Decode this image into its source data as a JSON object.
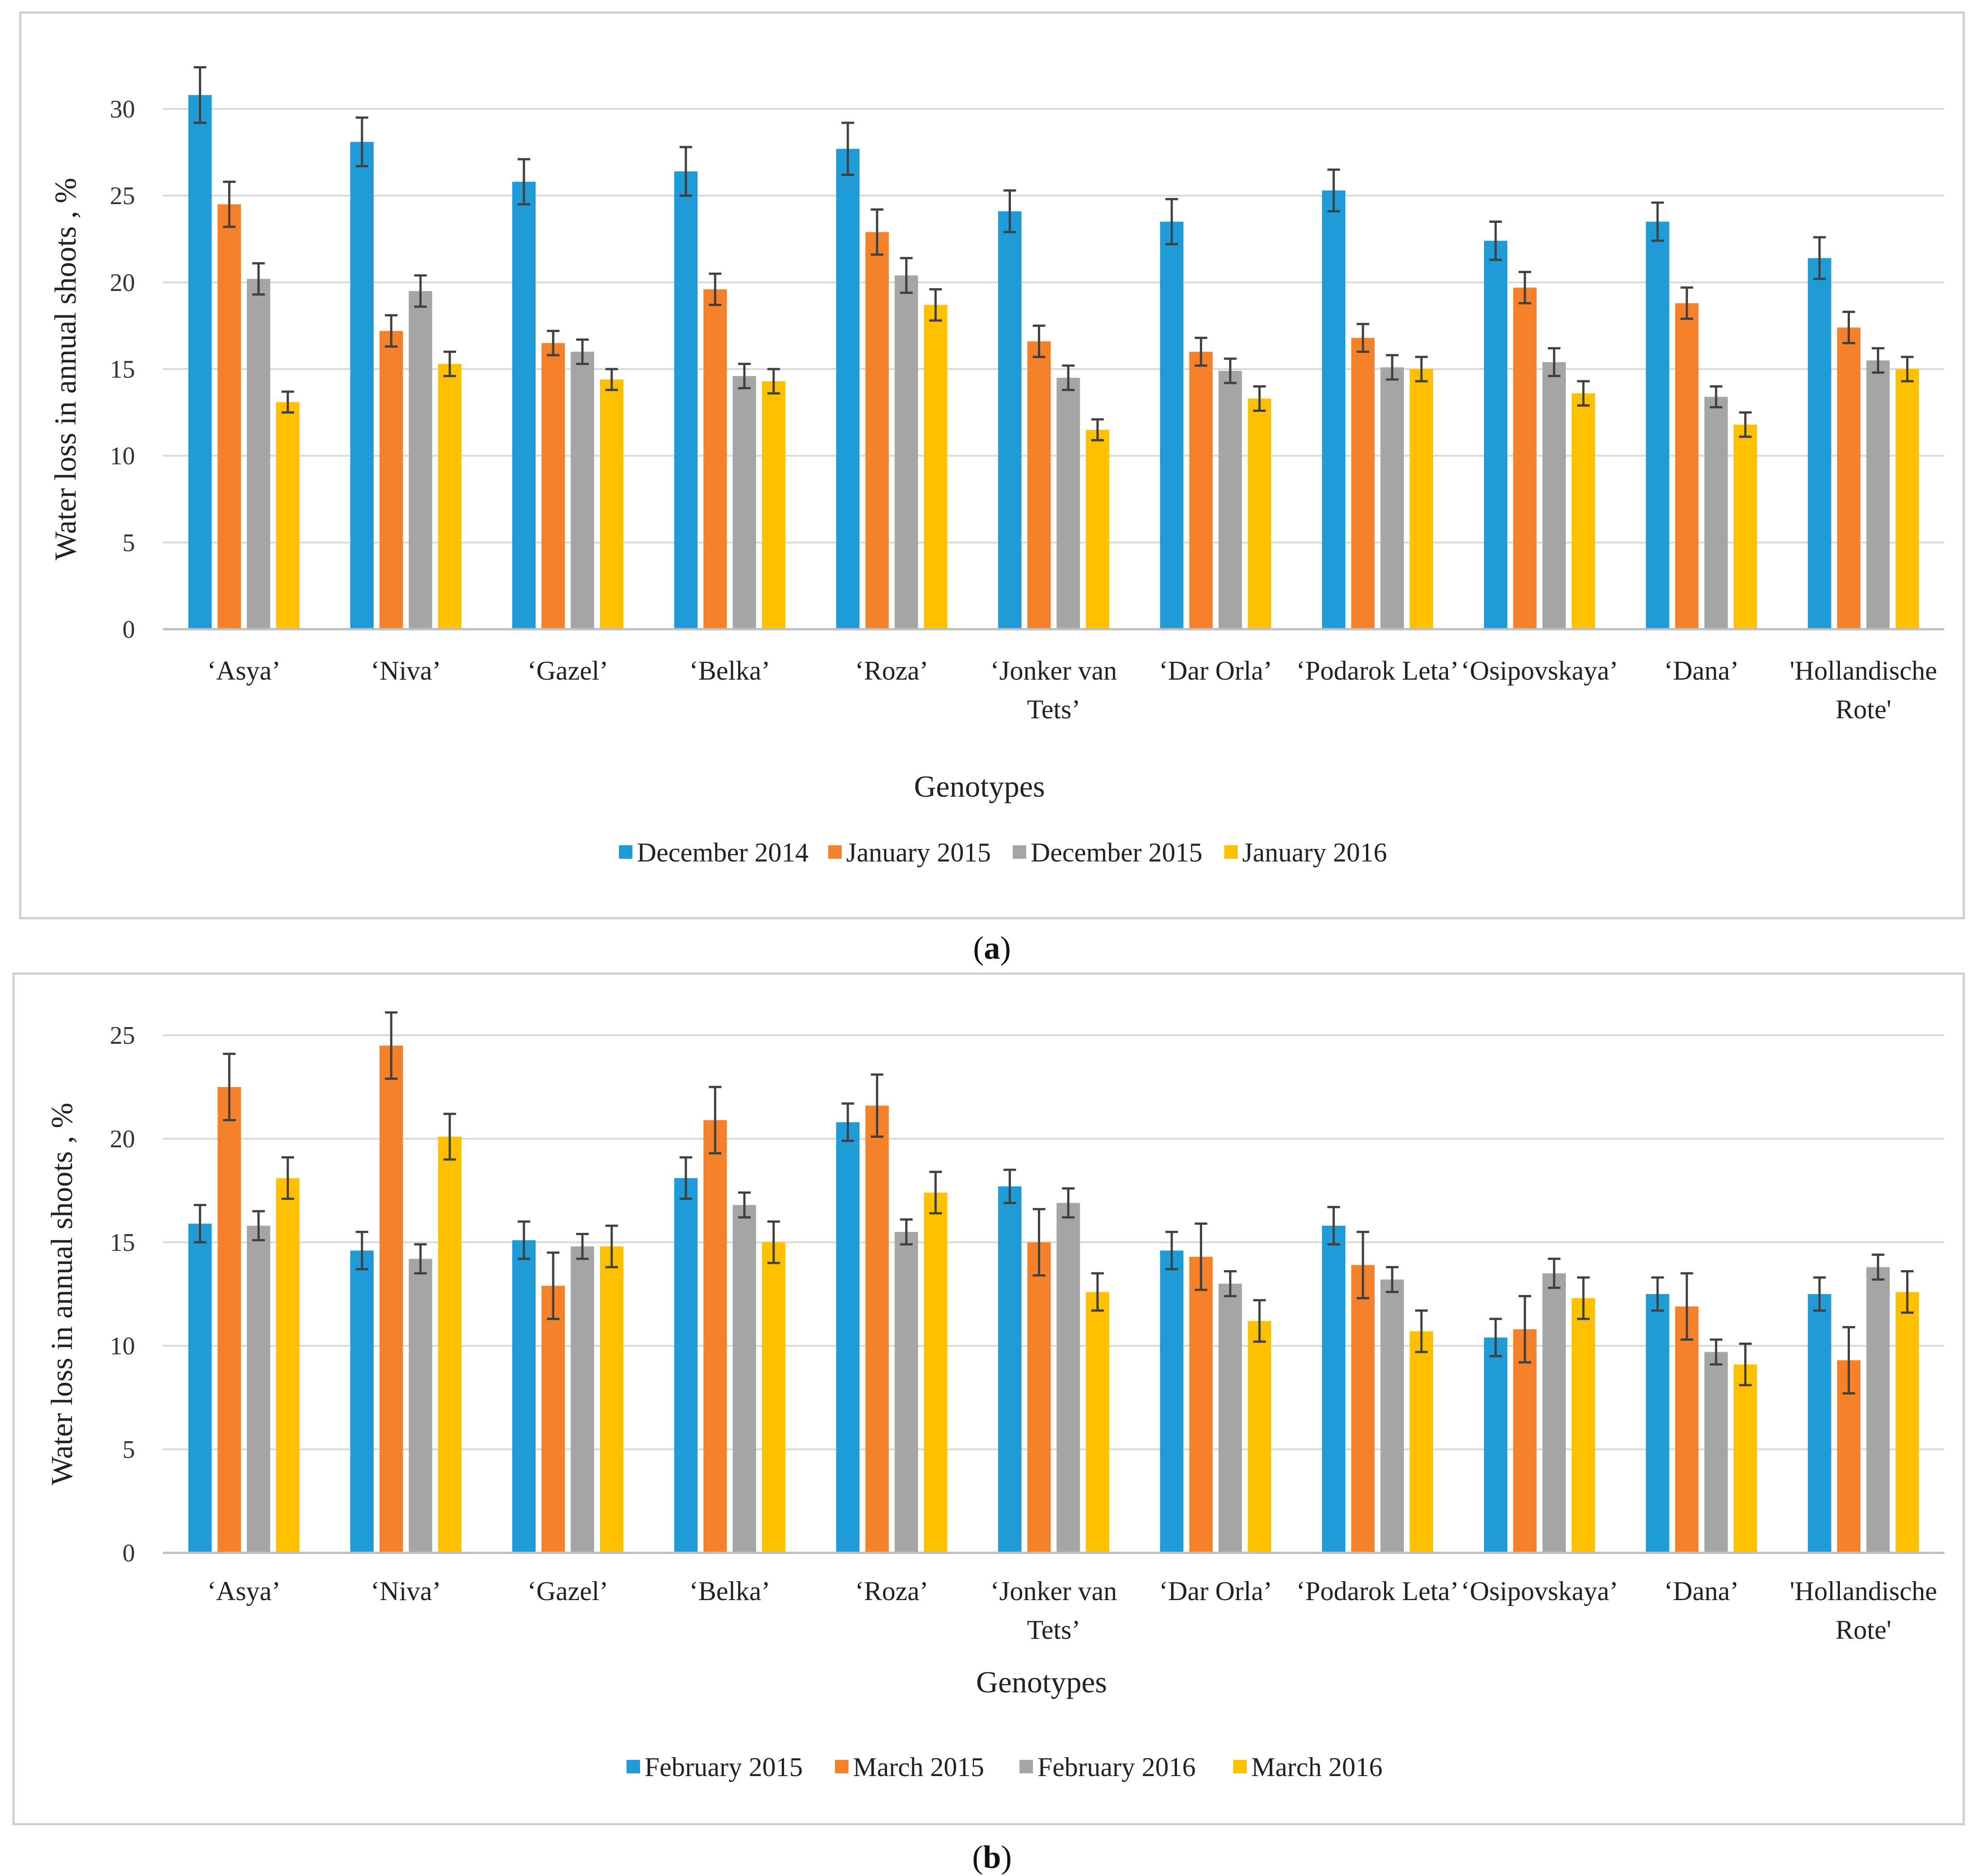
{
  "chart_data": [
    {
      "type": "bar",
      "panel_label": "a",
      "ylabel": "Water loss in annual shoots , %",
      "xlabel": "Genotypes",
      "ylim": [
        0,
        30
      ],
      "yticks": [
        0,
        5,
        10,
        15,
        20,
        25,
        30
      ],
      "categories": [
        [
          "‘Asya’"
        ],
        [
          "‘Niva’"
        ],
        [
          "‘Gazel’"
        ],
        [
          "‘Belka’"
        ],
        [
          "‘Roza’"
        ],
        [
          "‘Jonker van",
          "Tets’"
        ],
        [
          "‘Dar Orla’"
        ],
        [
          "‘Podarok Leta’"
        ],
        [
          "‘Osipovskaya’"
        ],
        [
          "‘Dana’"
        ],
        [
          "'Hollandische",
          "Rote'"
        ]
      ],
      "series": [
        {
          "name": "December 2014",
          "color": "#1f9cd8",
          "values": [
            30.8,
            28.1,
            25.8,
            26.4,
            27.7,
            24.1,
            23.5,
            25.3,
            22.4,
            23.5,
            21.4
          ],
          "errors": [
            1.6,
            1.4,
            1.3,
            1.4,
            1.5,
            1.2,
            1.3,
            1.2,
            1.1,
            1.1,
            1.2
          ]
        },
        {
          "name": "January 2015",
          "color": "#f5812a",
          "values": [
            24.5,
            17.2,
            16.5,
            19.6,
            22.9,
            16.6,
            16.0,
            16.8,
            19.7,
            18.8,
            17.4
          ],
          "errors": [
            1.3,
            0.9,
            0.7,
            0.9,
            1.3,
            0.9,
            0.8,
            0.8,
            0.9,
            0.9,
            0.9
          ]
        },
        {
          "name": "December 2015",
          "color": "#a5a5a5",
          "values": [
            20.2,
            19.5,
            16.0,
            14.6,
            20.4,
            14.5,
            14.9,
            15.1,
            15.4,
            13.4,
            15.5
          ],
          "errors": [
            0.9,
            0.9,
            0.7,
            0.7,
            1.0,
            0.7,
            0.7,
            0.7,
            0.8,
            0.6,
            0.7
          ]
        },
        {
          "name": "January 2016",
          "color": "#ffc000",
          "values": [
            13.1,
            15.3,
            14.4,
            14.3,
            18.7,
            11.5,
            13.3,
            15.0,
            13.6,
            11.8,
            15.0
          ],
          "errors": [
            0.6,
            0.7,
            0.6,
            0.7,
            0.9,
            0.6,
            0.7,
            0.7,
            0.7,
            0.7,
            0.7
          ]
        }
      ]
    },
    {
      "type": "bar",
      "panel_label": "b",
      "ylabel": "Water loss in annual shoots , %",
      "xlabel": "Genotypes",
      "ylim": [
        0,
        25
      ],
      "yticks": [
        0,
        5,
        10,
        15,
        20,
        25
      ],
      "categories": [
        [
          "‘Asya’"
        ],
        [
          "‘Niva’"
        ],
        [
          "‘Gazel’"
        ],
        [
          "‘Belka’"
        ],
        [
          "‘Roza’"
        ],
        [
          "‘Jonker van",
          "Tets’"
        ],
        [
          "‘Dar Orla’"
        ],
        [
          "‘Podarok Leta’"
        ],
        [
          "‘Osipovskaya’"
        ],
        [
          "‘Dana’"
        ],
        [
          "'Hollandische",
          "Rote'"
        ]
      ],
      "series": [
        {
          "name": "February 2015",
          "color": "#1f9cd8",
          "values": [
            15.9,
            14.6,
            15.1,
            18.1,
            20.8,
            17.7,
            14.6,
            15.8,
            10.4,
            12.5,
            12.5
          ],
          "errors": [
            0.9,
            0.9,
            0.9,
            1.0,
            0.9,
            0.8,
            0.9,
            0.9,
            0.9,
            0.8,
            0.8
          ]
        },
        {
          "name": "March 2015",
          "color": "#f5812a",
          "values": [
            22.5,
            24.5,
            12.9,
            20.9,
            21.6,
            15.0,
            14.3,
            13.9,
            10.8,
            11.9,
            9.3
          ],
          "errors": [
            1.6,
            1.6,
            1.6,
            1.6,
            1.5,
            1.6,
            1.6,
            1.6,
            1.6,
            1.6,
            1.6
          ]
        },
        {
          "name": "February 2016",
          "color": "#a5a5a5",
          "values": [
            15.8,
            14.2,
            14.8,
            16.8,
            15.5,
            16.9,
            13.0,
            13.2,
            13.5,
            9.7,
            13.8
          ],
          "errors": [
            0.7,
            0.7,
            0.6,
            0.6,
            0.6,
            0.7,
            0.6,
            0.6,
            0.7,
            0.6,
            0.6
          ]
        },
        {
          "name": "March 2016",
          "color": "#ffc000",
          "values": [
            18.1,
            20.1,
            14.8,
            15.0,
            17.4,
            12.6,
            11.2,
            10.7,
            12.3,
            9.1,
            12.6
          ],
          "errors": [
            1.0,
            1.1,
            1.0,
            1.0,
            1.0,
            0.9,
            1.0,
            1.0,
            1.0,
            1.0,
            1.0
          ]
        }
      ]
    }
  ]
}
